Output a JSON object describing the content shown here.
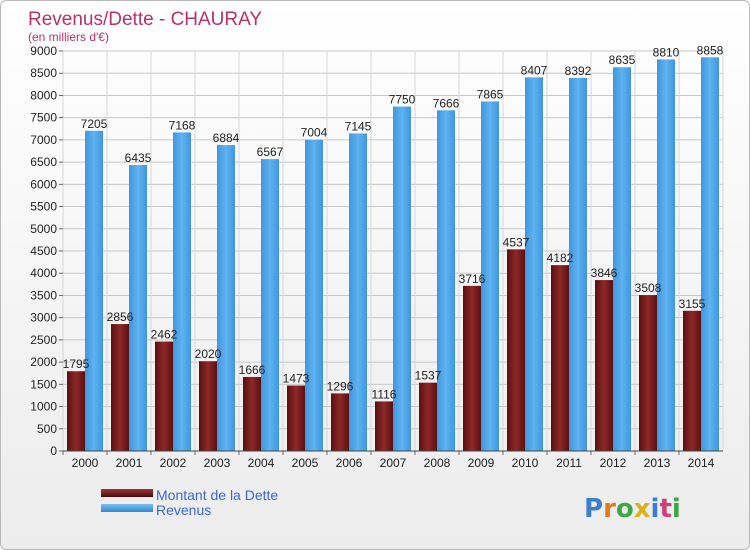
{
  "chart_data": {
    "type": "bar",
    "title": "Revenus/Dette - CHAURAY",
    "subtitle": "(en milliers d'€)",
    "categories": [
      "2000",
      "2001",
      "2002",
      "2003",
      "2004",
      "2005",
      "2006",
      "2007",
      "2008",
      "2009",
      "2010",
      "2011",
      "2012",
      "2013",
      "2014"
    ],
    "series": [
      {
        "name": "Montant de la Dette",
        "color": "#7a1c1c",
        "values": [
          1795,
          2856,
          2462,
          2020,
          1666,
          1473,
          1296,
          1116,
          1537,
          3716,
          4537,
          4182,
          3846,
          3508,
          3155
        ],
        "labels": [
          "1795",
          "2856",
          "2462",
          "2020",
          "1666",
          "1473",
          "1296",
          "1116",
          "1537",
          "3716",
          "4537",
          "4182",
          "3846",
          "3508",
          "3155"
        ]
      },
      {
        "name": "Revenus",
        "color": "#4aa2e6",
        "values": [
          7205,
          6435,
          7168,
          6884,
          6567,
          7004,
          7145,
          7750,
          7666,
          7865,
          8407,
          8392,
          8635,
          8810,
          8858
        ],
        "labels": [
          "7205",
          "6435",
          "7168",
          "6884",
          "6567",
          "7004",
          "7145",
          "7750",
          "7666",
          "7865",
          "8407",
          "8392",
          "8635",
          "8810",
          "8858"
        ]
      }
    ],
    "ylim": [
      0,
      9000
    ],
    "ytick_step": 500,
    "grid": true,
    "legend_position": "bottom-left"
  },
  "logo": {
    "text": "Proxiti"
  }
}
